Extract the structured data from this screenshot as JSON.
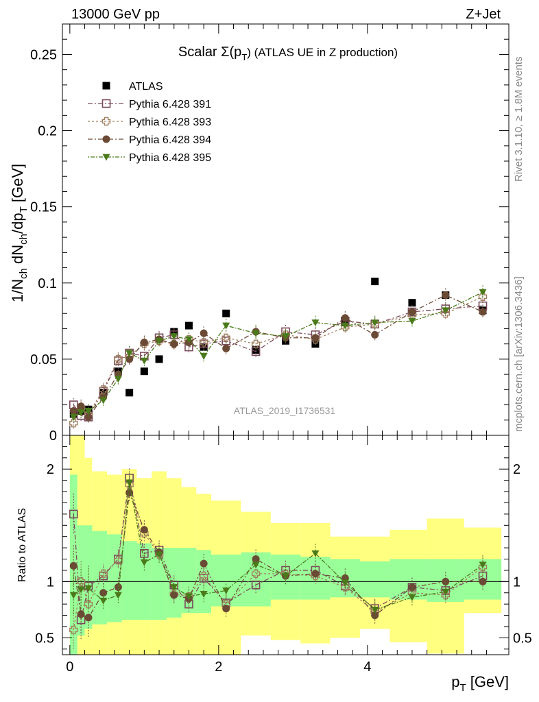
{
  "header": {
    "left": "13000 GeV pp",
    "right": "Z+Jet"
  },
  "side_labels": {
    "rivet": "Rivet 3.1.10, ≥ 1.8M events",
    "mcplots": "mcplots.cern.ch [arXiv:1306.3436]"
  },
  "chart_data": [
    {
      "type": "scatter",
      "title": "Scalar Σ(pT) (ATLAS UE in Z production)",
      "title_parts": {
        "main": "Scalar Σ(p",
        "sub": "T",
        "rest": ") (ATLAS UE in Z production)"
      },
      "ylabel": "1/Nch dNch/dpT [GeV]",
      "ylabel_parts": [
        "1/N",
        "ch",
        " dN",
        "ch",
        "/dp",
        "T",
        " [GeV]"
      ],
      "xlabel": "pT [GeV]",
      "xlabel_parts": [
        "p",
        "T",
        " [GeV]"
      ],
      "watermark": "ATLAS_2019_I1736531",
      "xlim": [
        -0.1,
        5.9
      ],
      "ylim": [
        0,
        0.27
      ],
      "y_ticks": [
        0.05,
        0.1,
        0.15,
        0.2,
        0.25
      ],
      "y_tick_labels": [
        "0",
        "0.05",
        "0.1",
        "0.15",
        "0.2",
        "0.25"
      ],
      "x_ticks": [
        0,
        2,
        4
      ],
      "x_tick_labels": [
        "0",
        "2",
        "4"
      ],
      "legend_position": "top-left",
      "x": [
        0.05,
        0.15,
        0.25,
        0.45,
        0.65,
        0.8,
        1.0,
        1.2,
        1.4,
        1.6,
        1.8,
        2.1,
        2.5,
        2.9,
        3.3,
        3.7,
        4.1,
        4.6,
        5.05,
        5.55
      ],
      "series": [
        {
          "name": "ATLAS",
          "marker": "filled-square",
          "color": "#000000",
          "values": [
            0.014,
            0.016,
            0.017,
            0.028,
            0.042,
            0.028,
            0.042,
            0.05,
            0.068,
            0.072,
            0.058,
            0.08,
            0.056,
            0.062,
            0.06,
            0.074,
            0.101,
            0.087,
            0.092,
            0.082
          ]
        },
        {
          "name": "Pythia 6.428 391",
          "marker": "open-square",
          "color": "#7a4a5a",
          "values": [
            0.02,
            0.013,
            0.012,
            0.029,
            0.049,
            0.054,
            0.052,
            0.064,
            0.066,
            0.058,
            0.06,
            0.062,
            0.055,
            0.068,
            0.066,
            0.075,
            0.073,
            0.081,
            0.083,
            0.085
          ]
        },
        {
          "name": "Pythia 6.428 393",
          "marker": "open-cross",
          "color": "#a08060",
          "values": [
            0.008,
            0.018,
            0.014,
            0.03,
            0.05,
            0.052,
            0.06,
            0.062,
            0.06,
            0.063,
            0.061,
            0.064,
            0.06,
            0.066,
            0.063,
            0.071,
            0.073,
            0.079,
            0.08,
            0.091
          ]
        },
        {
          "name": "Pythia 6.428 394",
          "marker": "filled-circle",
          "color": "#6b4a35",
          "values": [
            0.016,
            0.019,
            0.012,
            0.025,
            0.04,
            0.05,
            0.061,
            0.063,
            0.06,
            0.061,
            0.067,
            0.057,
            0.068,
            0.064,
            0.064,
            0.077,
            0.066,
            0.081,
            0.092,
            0.081
          ]
        },
        {
          "name": "Pythia 6.428 395",
          "marker": "filled-triangle-down",
          "color": "#4a7a1a",
          "values": [
            0.012,
            0.015,
            0.016,
            0.023,
            0.037,
            0.054,
            0.049,
            0.062,
            0.065,
            0.063,
            0.052,
            0.072,
            0.067,
            0.065,
            0.074,
            0.072,
            0.074,
            0.075,
            0.082,
            0.094
          ]
        }
      ]
    },
    {
      "type": "scatter",
      "title": "",
      "ylabel": "Ratio to ATLAS",
      "xlabel": "pT [GeV]",
      "xlim": [
        -0.1,
        5.9
      ],
      "ylim": [
        0.35,
        2.3
      ],
      "y_ticks": [
        0.5,
        1,
        2
      ],
      "y_tick_labels": [
        "0.5",
        "1",
        "2"
      ],
      "reference_line": 1,
      "bins": [
        0,
        0.1,
        0.2,
        0.3,
        0.5,
        0.7,
        0.9,
        1.1,
        1.3,
        1.5,
        1.7,
        1.9,
        2.3,
        2.7,
        3.1,
        3.5,
        3.9,
        4.3,
        4.8,
        5.3,
        5.8
      ],
      "band_inner": {
        "color": "#99ff99",
        "low": [
          0.35,
          0.52,
          0.58,
          0.62,
          0.64,
          0.66,
          0.66,
          0.66,
          0.68,
          0.72,
          0.72,
          0.78,
          0.78,
          0.84,
          0.84,
          0.86,
          0.86,
          0.84,
          0.82,
          0.84
        ],
        "high": [
          1.95,
          1.5,
          1.5,
          1.45,
          1.42,
          1.36,
          1.34,
          1.3,
          1.3,
          1.3,
          1.28,
          1.24,
          1.26,
          1.24,
          1.22,
          1.2,
          1.18,
          1.2,
          1.2,
          1.2
        ]
      },
      "band_outer": {
        "color": "#ffff80",
        "low": [
          0.35,
          0.35,
          0.35,
          0.35,
          0.35,
          0.35,
          0.35,
          0.35,
          0.35,
          0.35,
          0.35,
          0.35,
          0.52,
          0.48,
          0.45,
          0.5,
          0.58,
          0.46,
          0.36,
          0.72
        ],
        "high": [
          2.3,
          2.3,
          2.1,
          1.98,
          1.95,
          2.0,
          1.92,
          1.98,
          1.92,
          1.84,
          1.78,
          1.72,
          1.62,
          1.52,
          1.52,
          1.4,
          1.4,
          1.46,
          1.56,
          1.48
        ]
      },
      "x": [
        0.05,
        0.15,
        0.25,
        0.45,
        0.65,
        0.8,
        1.0,
        1.2,
        1.4,
        1.6,
        1.8,
        2.1,
        2.5,
        2.9,
        3.3,
        3.7,
        4.1,
        4.6,
        5.05,
        5.55
      ],
      "series": [
        {
          "name": "Pythia 6.428 391",
          "values": [
            1.6,
            0.66,
            0.96,
            1.05,
            1.2,
            1.92,
            1.25,
            1.28,
            0.97,
            0.8,
            1.03,
            0.81,
            0.97,
            1.1,
            1.1,
            0.96,
            0.76,
            0.95,
            0.92,
            1.05
          ]
        },
        {
          "name": "Pythia 6.428 393",
          "values": [
            0.57,
            1.0,
            0.8,
            1.07,
            1.19,
            1.86,
            1.43,
            1.24,
            0.89,
            0.87,
            1.05,
            0.8,
            1.07,
            1.07,
            1.05,
            0.95,
            0.73,
            0.9,
            0.88,
            1.13
          ]
        },
        {
          "name": "Pythia 6.428 394",
          "values": [
            1.14,
            0.71,
            0.68,
            0.9,
            0.95,
            1.79,
            1.46,
            1.26,
            0.88,
            0.85,
            1.16,
            0.76,
            1.2,
            1.05,
            1.07,
            1.03,
            0.7,
            0.95,
            1.0,
            1.0
          ]
        },
        {
          "name": "Pythia 6.428 395",
          "values": [
            0.88,
            0.93,
            0.94,
            0.83,
            0.88,
            1.88,
            1.17,
            1.24,
            0.95,
            0.87,
            0.89,
            0.92,
            1.15,
            1.05,
            1.25,
            0.99,
            0.75,
            0.86,
            0.91,
            1.15
          ]
        }
      ]
    }
  ]
}
